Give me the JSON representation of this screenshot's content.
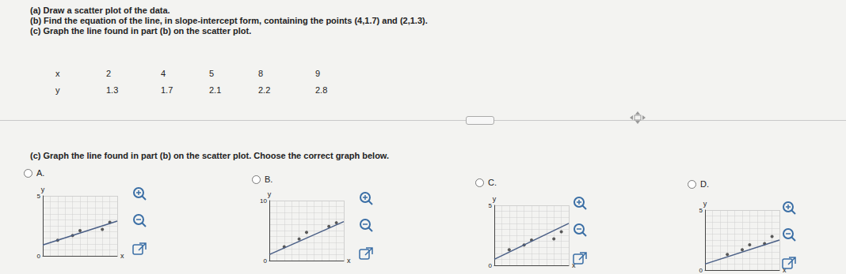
{
  "document": {
    "instructions": [
      "(a) Draw a scatter plot of the data.",
      "(b) Find the equation of the line, in slope-intercept form, containing the points (4,1.7) and (2,1.3).",
      "(c) Graph the line found in part (b) on the scatter plot."
    ],
    "table": {
      "rows": [
        [
          "x",
          2,
          4,
          5,
          8,
          9
        ],
        [
          "y",
          1.3,
          1.7,
          2.1,
          2.2,
          2.8
        ]
      ]
    },
    "question": "(c) Graph the line found in part (b) on the scatter plot. Choose the correct graph below.",
    "options": [
      "A.",
      "B.",
      "C.",
      "D."
    ]
  },
  "chart_data": [
    {
      "type": "scatter",
      "xlabel": "x",
      "ylabel": "y",
      "xlim": [
        0,
        10
      ],
      "ylim": [
        0,
        5
      ],
      "xticks": [
        0,
        10
      ],
      "yticks": [
        0,
        5
      ],
      "grid": true,
      "tick_labels": "y",
      "series": [
        {
          "type": "scatter",
          "color": "#333333",
          "x": [
            2,
            4,
            5,
            8,
            9
          ],
          "values": [
            1.3,
            1.7,
            2.1,
            2.2,
            2.8
          ]
        },
        {
          "type": "line",
          "color": "#4a5f86",
          "x": [
            0,
            10
          ],
          "values": [
            0.9,
            2.9
          ]
        }
      ]
    },
    {
      "type": "scatter",
      "xlabel": "x",
      "ylabel": "y",
      "xlim": [
        0,
        10
      ],
      "ylim": [
        0,
        10
      ],
      "xticks": [
        0,
        10
      ],
      "yticks": [
        0,
        10
      ],
      "grid": true,
      "tick_labels": "y",
      "series": [
        {
          "type": "scatter",
          "color": "#333333",
          "x": [
            2,
            4,
            5,
            8,
            9
          ],
          "values": [
            2.3,
            3.6,
            4.7,
            5.7,
            6.3
          ]
        },
        {
          "type": "line",
          "color": "#4a5f86",
          "x": [
            0,
            10
          ],
          "values": [
            1,
            6.5
          ]
        }
      ]
    },
    {
      "type": "scatter",
      "xlabel": "x",
      "ylabel": "y",
      "xlim": [
        0,
        10
      ],
      "ylim": [
        0,
        5
      ],
      "xticks": [
        0,
        10
      ],
      "yticks": [
        0,
        5
      ],
      "grid": true,
      "tick_labels": "y",
      "series": [
        {
          "type": "scatter",
          "color": "#333333",
          "x": [
            2,
            4,
            5,
            8,
            9
          ],
          "values": [
            1.3,
            1.7,
            2.1,
            2.2,
            2.8
          ]
        },
        {
          "type": "line",
          "color": "#4a5f86",
          "x": [
            0,
            10
          ],
          "values": [
            0.5,
            3.5
          ]
        }
      ]
    },
    {
      "type": "scatter",
      "xlabel": "x",
      "ylabel": "y",
      "xlim": [
        0,
        10
      ],
      "ylim": [
        0,
        5
      ],
      "xticks": [
        0,
        10
      ],
      "yticks": [
        0,
        5
      ],
      "grid": true,
      "tick_labels": "y",
      "series": [
        {
          "type": "scatter",
          "color": "#333333",
          "x": [
            3,
            5,
            6,
            8,
            9
          ],
          "values": [
            1.3,
            1.7,
            2.1,
            2.2,
            2.8
          ]
        },
        {
          "type": "line",
          "color": "#4a5f86",
          "x": [
            0,
            10
          ],
          "values": [
            0.5,
            2.5
          ]
        }
      ]
    }
  ]
}
